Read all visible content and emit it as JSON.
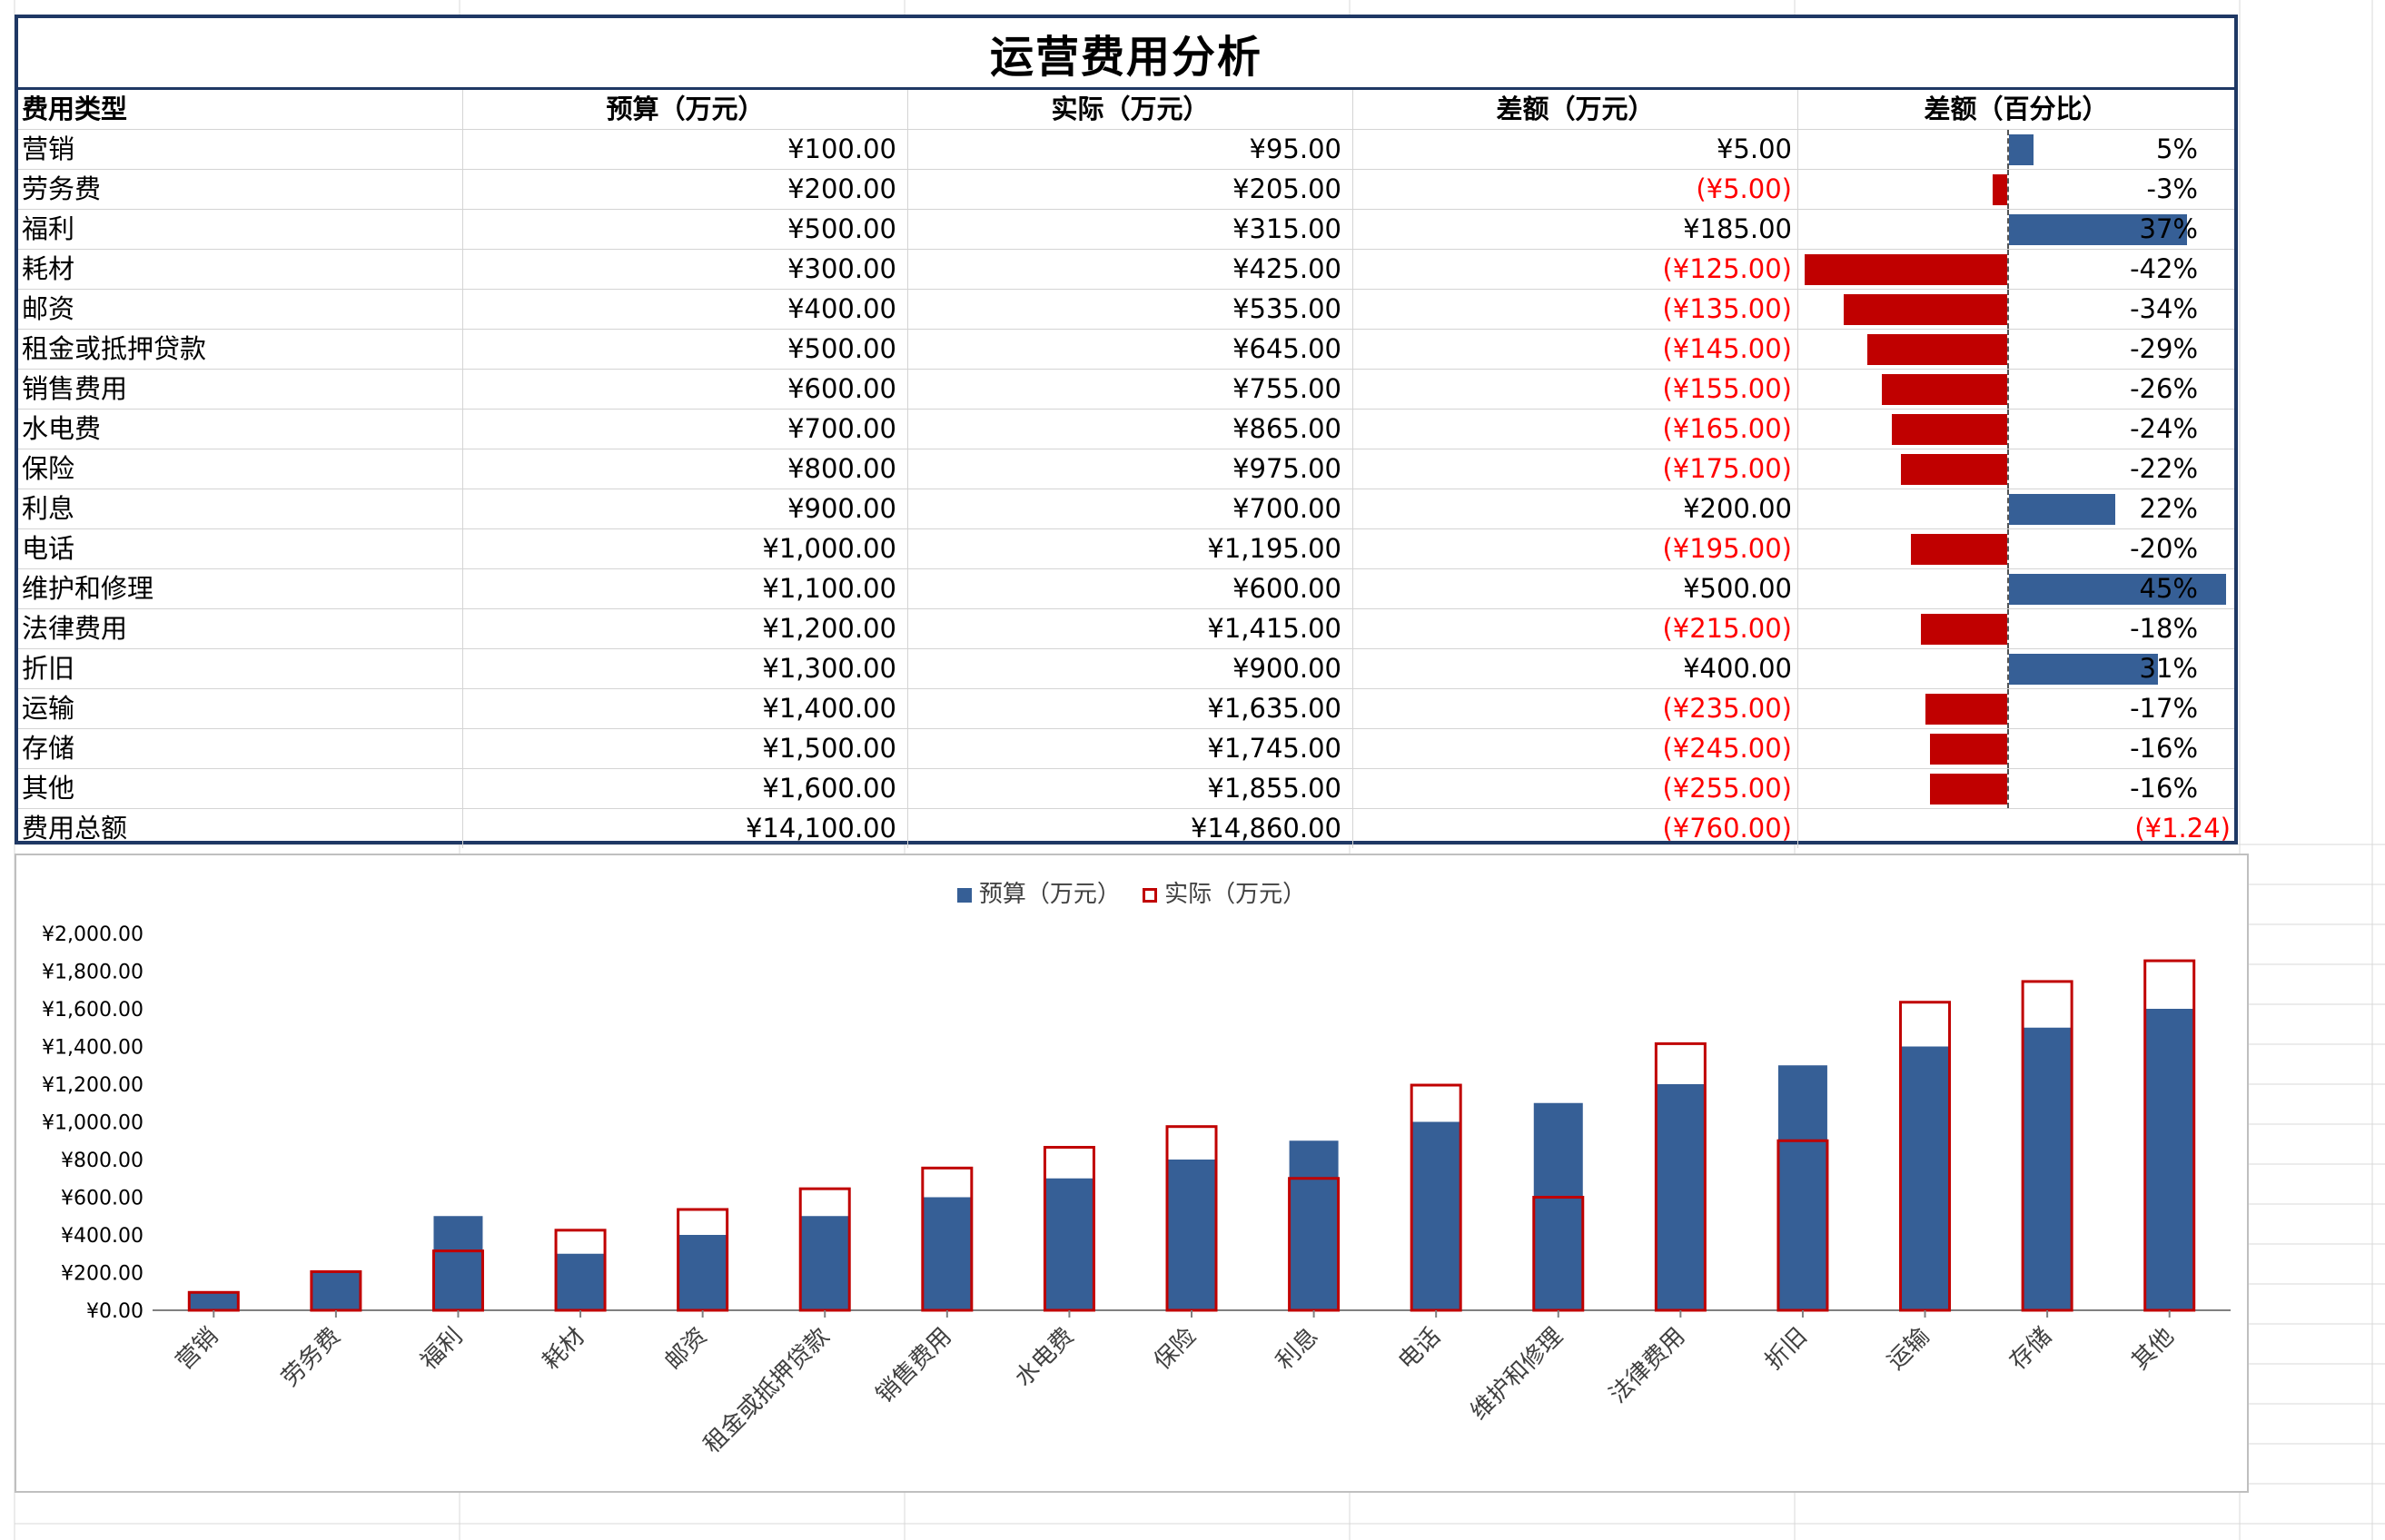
{
  "title": "运营费用分析",
  "table": {
    "headers": [
      "费用类型",
      "预算（万元）",
      "实际（万元）",
      "差额（万元）",
      "差额（百分比）"
    ],
    "rows": [
      {
        "type": "营销",
        "budget": "¥100.00",
        "actual": "¥95.00",
        "diff": "¥5.00",
        "pct": "5%",
        "pct_value": 5
      },
      {
        "type": "劳务费",
        "budget": "¥200.00",
        "actual": "¥205.00",
        "diff": "(¥5.00)",
        "pct": "-3%",
        "pct_value": -3
      },
      {
        "type": "福利",
        "budget": "¥500.00",
        "actual": "¥315.00",
        "diff": "¥185.00",
        "pct": "37%",
        "pct_value": 37
      },
      {
        "type": "耗材",
        "budget": "¥300.00",
        "actual": "¥425.00",
        "diff": "(¥125.00)",
        "pct": "-42%",
        "pct_value": -42
      },
      {
        "type": "邮资",
        "budget": "¥400.00",
        "actual": "¥535.00",
        "diff": "(¥135.00)",
        "pct": "-34%",
        "pct_value": -34
      },
      {
        "type": "租金或抵押贷款",
        "budget": "¥500.00",
        "actual": "¥645.00",
        "diff": "(¥145.00)",
        "pct": "-29%",
        "pct_value": -29
      },
      {
        "type": "销售费用",
        "budget": "¥600.00",
        "actual": "¥755.00",
        "diff": "(¥155.00)",
        "pct": "-26%",
        "pct_value": -26
      },
      {
        "type": "水电费",
        "budget": "¥700.00",
        "actual": "¥865.00",
        "diff": "(¥165.00)",
        "pct": "-24%",
        "pct_value": -24
      },
      {
        "type": "保险",
        "budget": "¥800.00",
        "actual": "¥975.00",
        "diff": "(¥175.00)",
        "pct": "-22%",
        "pct_value": -22
      },
      {
        "type": "利息",
        "budget": "¥900.00",
        "actual": "¥700.00",
        "diff": "¥200.00",
        "pct": "22%",
        "pct_value": 22
      },
      {
        "type": "电话",
        "budget": "¥1,000.00",
        "actual": "¥1,195.00",
        "diff": "(¥195.00)",
        "pct": "-20%",
        "pct_value": -20
      },
      {
        "type": "维护和修理",
        "budget": "¥1,100.00",
        "actual": "¥600.00",
        "diff": "¥500.00",
        "pct": "45%",
        "pct_value": 45
      },
      {
        "type": "法律费用",
        "budget": "¥1,200.00",
        "actual": "¥1,415.00",
        "diff": "(¥215.00)",
        "pct": "-18%",
        "pct_value": -18
      },
      {
        "type": "折旧",
        "budget": "¥1,300.00",
        "actual": "¥900.00",
        "diff": "¥400.00",
        "pct": "31%",
        "pct_value": 31
      },
      {
        "type": "运输",
        "budget": "¥1,400.00",
        "actual": "¥1,635.00",
        "diff": "(¥235.00)",
        "pct": "-17%",
        "pct_value": -17
      },
      {
        "type": "存储",
        "budget": "¥1,500.00",
        "actual": "¥1,745.00",
        "diff": "(¥245.00)",
        "pct": "-16%",
        "pct_value": -16
      },
      {
        "type": "其他",
        "budget": "¥1,600.00",
        "actual": "¥1,855.00",
        "diff": "(¥255.00)",
        "pct": "-16%",
        "pct_value": -16
      }
    ],
    "total": {
      "type": "费用总额",
      "budget": "¥14,100.00",
      "actual": "¥14,860.00",
      "diff": "(¥760.00)",
      "pct": "(¥1.24)"
    }
  },
  "colors": {
    "budget": "#365f96",
    "actual_border": "#c00000",
    "negative_text": "#ff0000",
    "title_border": "#1f3864"
  },
  "chart_data": {
    "type": "bar",
    "title": "",
    "legend": [
      "预算（万元）",
      "实际（万元）"
    ],
    "legend_position": "top",
    "categories": [
      "营销",
      "劳务费",
      "福利",
      "耗材",
      "邮资",
      "租金或抵押贷款",
      "销售费用",
      "水电费",
      "保险",
      "利息",
      "电话",
      "维护和修理",
      "法律费用",
      "折旧",
      "运输",
      "存储",
      "其他"
    ],
    "series": [
      {
        "name": "预算（万元）",
        "values": [
          100,
          200,
          500,
          300,
          400,
          500,
          600,
          700,
          800,
          900,
          1000,
          1100,
          1200,
          1300,
          1400,
          1500,
          1600
        ]
      },
      {
        "name": "实际（万元）",
        "values": [
          95,
          205,
          315,
          425,
          535,
          645,
          755,
          865,
          975,
          700,
          1195,
          600,
          1415,
          900,
          1635,
          1745,
          1855
        ]
      }
    ],
    "ylim": [
      0,
      2000
    ],
    "yticks": [
      0,
      200,
      400,
      600,
      800,
      1000,
      1200,
      1400,
      1600,
      1800,
      2000
    ],
    "ytick_labels": [
      "¥0.00",
      "¥200.00",
      "¥400.00",
      "¥600.00",
      "¥800.00",
      "¥1,000.00",
      "¥1,200.00",
      "¥1,400.00",
      "¥1,600.00",
      "¥1,800.00",
      "¥2,000.00"
    ],
    "xlabel": "",
    "ylabel": ""
  }
}
